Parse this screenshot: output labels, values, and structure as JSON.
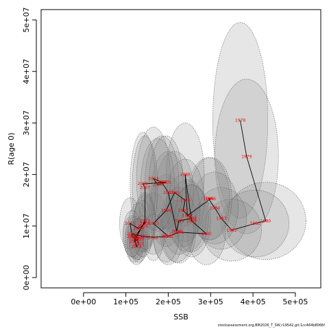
{
  "chart_data": {
    "type": "scatter",
    "title": "",
    "xlabel": "SSB",
    "ylabel": "R(age 0)",
    "xlim": [
      -100000,
      560000
    ],
    "ylim": [
      -2000000,
      52000000
    ],
    "x_ticks": [
      0,
      100000,
      200000,
      300000,
      400000,
      500000
    ],
    "x_tick_labels": [
      "0e+00",
      "1e+05",
      "2e+05",
      "3e+05",
      "4e+05",
      "5e+05"
    ],
    "y_ticks": [
      0,
      10000000,
      20000000,
      30000000,
      40000000,
      50000000
    ],
    "y_tick_labels": [
      "0e+00",
      "1e+07",
      "2e+07",
      "3e+07",
      "4e+07",
      "5e+07"
    ],
    "connected": true,
    "point_color": "#ff0000",
    "ellipse_fill": "#808080",
    "points": [
      {
        "year": "1978",
        "x": 370000,
        "y": 30500000,
        "ex": 65000,
        "ey": 19000000
      },
      {
        "year": "1979",
        "x": 385000,
        "y": 23500000,
        "ex": 75000,
        "ey": 15000000
      },
      {
        "year": "1980",
        "x": 430000,
        "y": 11000000,
        "ex": 95000,
        "ey": 7500000
      },
      {
        "year": "1981",
        "x": 405000,
        "y": 10500000,
        "ex": 80000,
        "ey": 6500000
      },
      {
        "year": "1982",
        "x": 350000,
        "y": 9200000,
        "ex": 70000,
        "ey": 6000000
      },
      {
        "year": "1983",
        "x": 325000,
        "y": 11500000,
        "ex": 60000,
        "ey": 6000000
      },
      {
        "year": "1984",
        "x": 310000,
        "y": 13500000,
        "ex": 55000,
        "ey": 7000000
      },
      {
        "year": "1985",
        "x": 295000,
        "y": 15300000,
        "ex": 50000,
        "ey": 8000000
      },
      {
        "year": "1986",
        "x": 300000,
        "y": 15300000,
        "ex": 50000,
        "ey": 8000000
      },
      {
        "year": "1987",
        "x": 245000,
        "y": 12000000,
        "ex": 45000,
        "ey": 7000000
      },
      {
        "year": "1988",
        "x": 240000,
        "y": 20000000,
        "ex": 45000,
        "ey": 10000000
      },
      {
        "year": "1989",
        "x": 255000,
        "y": 11000000,
        "ex": 45000,
        "ey": 7000000
      },
      {
        "year": "1990",
        "x": 290000,
        "y": 8500000,
        "ex": 45000,
        "ey": 6000000
      },
      {
        "year": "1991",
        "x": 225000,
        "y": 8800000,
        "ex": 40000,
        "ey": 6000000
      },
      {
        "year": "1992",
        "x": 200000,
        "y": 8000000,
        "ex": 35000,
        "ey": 5500000
      },
      {
        "year": "1993",
        "x": 165000,
        "y": 10500000,
        "ex": 35000,
        "ey": 6000000
      },
      {
        "year": "1994",
        "x": 195000,
        "y": 13000000,
        "ex": 40000,
        "ey": 7000000
      },
      {
        "year": "1995",
        "x": 215000,
        "y": 16500000,
        "ex": 45000,
        "ey": 8000000
      },
      {
        "year": "1996",
        "x": 240000,
        "y": 15000000,
        "ex": 45000,
        "ey": 8000000
      },
      {
        "year": "1997",
        "x": 235000,
        "y": 13000000,
        "ex": 40000,
        "ey": 7000000
      },
      {
        "year": "1998",
        "x": 255000,
        "y": 11500000,
        "ex": 40000,
        "ey": 6500000
      },
      {
        "year": "1999",
        "x": 225000,
        "y": 11000000,
        "ex": 40000,
        "ey": 6500000
      },
      {
        "year": "2000",
        "x": 220000,
        "y": 9000000,
        "ex": 40000,
        "ey": 6000000
      },
      {
        "year": "2001",
        "x": 200000,
        "y": 16500000,
        "ex": 40000,
        "ey": 8000000
      },
      {
        "year": "2002",
        "x": 185000,
        "y": 18500000,
        "ex": 40000,
        "ey": 9000000
      },
      {
        "year": "2003",
        "x": 165000,
        "y": 19200000,
        "ex": 40000,
        "ey": 10000000
      },
      {
        "year": "2004",
        "x": 175000,
        "y": 18000000,
        "ex": 40000,
        "ey": 9000000
      },
      {
        "year": "2005",
        "x": 195000,
        "y": 18500000,
        "ex": 40000,
        "ey": 9000000
      },
      {
        "year": "2006",
        "x": 140000,
        "y": 18200000,
        "ex": 30000,
        "ey": 10000000
      },
      {
        "year": "2007",
        "x": 145000,
        "y": 17500000,
        "ex": 30000,
        "ey": 10000000
      },
      {
        "year": "2008",
        "x": 145000,
        "y": 10500000,
        "ex": 25000,
        "ey": 5500000
      },
      {
        "year": "2009",
        "x": 130000,
        "y": 9500000,
        "ex": 25000,
        "ey": 5000000
      },
      {
        "year": "2010",
        "x": 110000,
        "y": 10500000,
        "ex": 25000,
        "ey": 5000000
      },
      {
        "year": "2011",
        "x": 115000,
        "y": 8000000,
        "ex": 22000,
        "ey": 4000000
      },
      {
        "year": "2012",
        "x": 125000,
        "y": 7500000,
        "ex": 22000,
        "ey": 4000000
      },
      {
        "year": "2013",
        "x": 130000,
        "y": 6500000,
        "ex": 22000,
        "ey": 3500000
      },
      {
        "year": "2014",
        "x": 125000,
        "y": 6000000,
        "ex": 22000,
        "ey": 3500000
      },
      {
        "year": "2015",
        "x": 120000,
        "y": 7800000,
        "ex": 22000,
        "ey": 4000000
      },
      {
        "year": "2016",
        "x": 140000,
        "y": 10000000,
        "ex": 25000,
        "ey": 5000000
      },
      {
        "year": "2017",
        "x": 145000,
        "y": 11000000,
        "ex": 25000,
        "ey": 5500000
      },
      {
        "year": "2018",
        "x": 120000,
        "y": 7000000,
        "ex": 22000,
        "ey": 4000000
      },
      {
        "year": "2019",
        "x": 130000,
        "y": 7500000,
        "ex": 22000,
        "ey": 4000000
      },
      {
        "year": "2020",
        "x": 115000,
        "y": 8500000,
        "ex": 22000,
        "ey": 4500000
      },
      {
        "year": "2021",
        "x": 140000,
        "y": 8000000,
        "ex": 22000,
        "ey": 4000000
      },
      {
        "year": "2022",
        "x": 165000,
        "y": 7800000,
        "ex": 25000,
        "ey": 4500000
      },
      {
        "year": "2023",
        "x": 195000,
        "y": 8000000,
        "ex": 30000,
        "ey": 5000000
      }
    ]
  },
  "footer": {
    "text": "stockassessment.org,BM2026_T_SW,r19542,git:1cc464b8066f"
  }
}
